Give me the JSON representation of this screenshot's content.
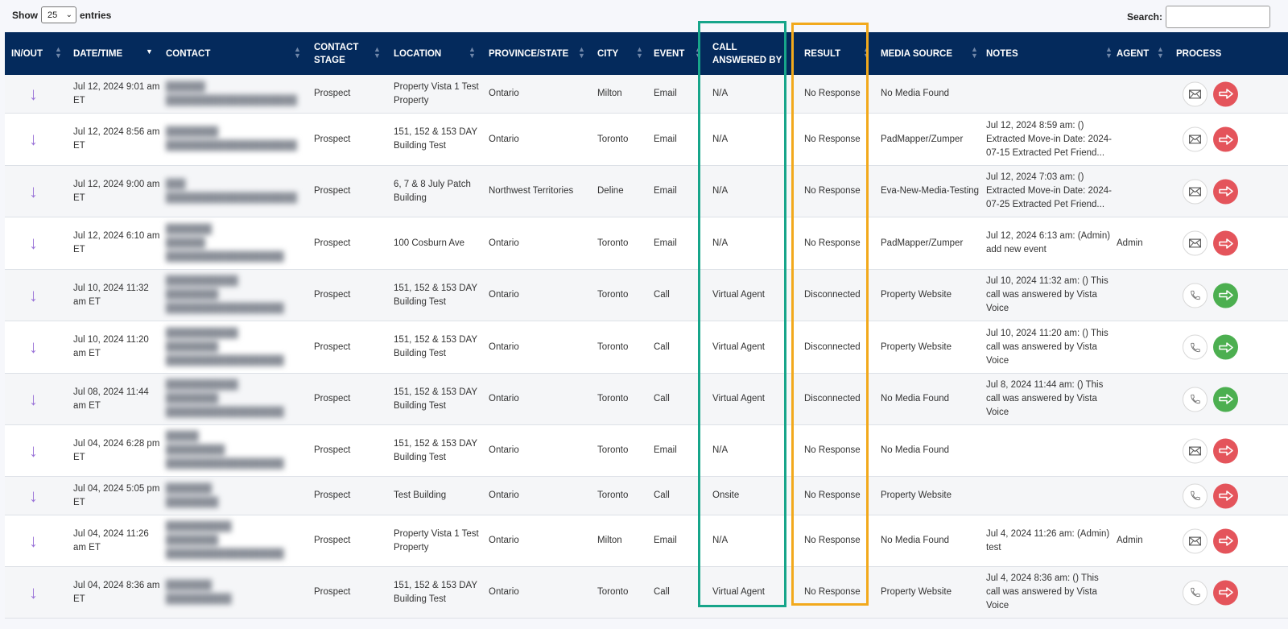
{
  "length_control": {
    "show_label": "Show",
    "selected": "25",
    "entries_label": "entries"
  },
  "search": {
    "label": "Search:",
    "value": ""
  },
  "columns": [
    {
      "key": "inout",
      "label": "IN/OUT"
    },
    {
      "key": "datetime",
      "label": "DATE/TIME"
    },
    {
      "key": "contact",
      "label": "CONTACT"
    },
    {
      "key": "stage",
      "label": "CONTACT STAGE"
    },
    {
      "key": "location",
      "label": "LOCATION"
    },
    {
      "key": "province",
      "label": "PROVINCE/STATE"
    },
    {
      "key": "city",
      "label": "CITY"
    },
    {
      "key": "event",
      "label": "EVENT"
    },
    {
      "key": "answered",
      "label": "CALL ANSWERED BY"
    },
    {
      "key": "result",
      "label": "RESULT"
    },
    {
      "key": "media",
      "label": "MEDIA SOURCE"
    },
    {
      "key": "notes",
      "label": "NOTES"
    },
    {
      "key": "agent",
      "label": "AGENT"
    },
    {
      "key": "process",
      "label": "PROCESS"
    }
  ],
  "direction_icon": "arrow-down-icon",
  "colors": {
    "header": "#042a5c",
    "teal_highlight": "#17a58a",
    "gold_highlight": "#f2a91c",
    "red": "#e4545b",
    "green": "#4caf50",
    "arrow": "#9a73d8"
  },
  "rows": [
    {
      "datetime": "Jul 12, 2024 9:01 am ET",
      "contact": [
        "██████",
        "████████████████████"
      ],
      "stage": "Prospect",
      "location": "Property Vista 1 Test Property",
      "province": "Ontario",
      "city": "Milton",
      "event": "Email",
      "answered": "N/A",
      "result": "No Response",
      "media": "No Media Found",
      "notes": "",
      "agent": "",
      "process_icon": "mail-icon",
      "action_color": "red"
    },
    {
      "datetime": "Jul 12, 2024 8:56 am ET",
      "contact": [
        "████████",
        "████████████████████"
      ],
      "stage": "Prospect",
      "location": "151, 152 & 153 DAY Building Test",
      "province": "Ontario",
      "city": "Toronto",
      "event": "Email",
      "answered": "N/A",
      "result": "No Response",
      "media": "PadMapper/Zumper",
      "notes": "Jul 12, 2024 8:59 am: () Extracted Move-in Date: 2024-07-15 Extracted Pet Friend...",
      "agent": "",
      "process_icon": "mail-icon",
      "action_color": "red"
    },
    {
      "datetime": "Jul 12, 2024 9:00 am ET",
      "contact": [
        "███",
        "████████████████████"
      ],
      "stage": "Prospect",
      "location": "6, 7 & 8 July Patch Building",
      "province": "Northwest Territories",
      "city": "Deline",
      "event": "Email",
      "answered": "N/A",
      "result": "No Response",
      "media": "Eva-New-Media-Testing",
      "notes": "Jul 12, 2024 7:03 am: () Extracted Move-in Date: 2024-07-25 Extracted Pet Friend...",
      "agent": "",
      "process_icon": "mail-icon",
      "action_color": "red"
    },
    {
      "datetime": "Jul 12, 2024 6:10 am ET",
      "contact": [
        "███████",
        "██████",
        "██████████████████"
      ],
      "stage": "Prospect",
      "location": "100 Cosburn Ave",
      "province": "Ontario",
      "city": "Toronto",
      "event": "Email",
      "answered": "N/A",
      "result": "No Response",
      "media": "PadMapper/Zumper",
      "notes": "Jul 12, 2024 6:13 am: (Admin) add new event",
      "agent": "Admin",
      "process_icon": "mail-icon",
      "action_color": "red"
    },
    {
      "datetime": "Jul 10, 2024 11:32 am ET",
      "contact": [
        "███████████",
        "████████",
        "██████████████████"
      ],
      "stage": "Prospect",
      "location": "151, 152 & 153 DAY Building Test",
      "province": "Ontario",
      "city": "Toronto",
      "event": "Call",
      "answered": "Virtual Agent",
      "result": "Disconnected",
      "media": "Property Website",
      "notes": "Jul 10, 2024 11:32 am: () This call was answered by Vista Voice",
      "agent": "",
      "process_icon": "phone-icon",
      "action_color": "green"
    },
    {
      "datetime": "Jul 10, 2024 11:20 am ET",
      "contact": [
        "███████████",
        "████████",
        "██████████████████"
      ],
      "stage": "Prospect",
      "location": "151, 152 & 153 DAY Building Test",
      "province": "Ontario",
      "city": "Toronto",
      "event": "Call",
      "answered": "Virtual Agent",
      "result": "Disconnected",
      "media": "Property Website",
      "notes": "Jul 10, 2024 11:20 am: () This call was answered by Vista Voice",
      "agent": "",
      "process_icon": "phone-icon",
      "action_color": "green"
    },
    {
      "datetime": "Jul 08, 2024 11:44 am ET",
      "contact": [
        "███████████",
        "████████",
        "██████████████████"
      ],
      "stage": "Prospect",
      "location": "151, 152 & 153 DAY Building Test",
      "province": "Ontario",
      "city": "Toronto",
      "event": "Call",
      "answered": "Virtual Agent",
      "result": "Disconnected",
      "media": "No Media Found",
      "notes": "Jul 8, 2024 11:44 am: () This call was answered by Vista Voice",
      "agent": "",
      "process_icon": "phone-icon",
      "action_color": "green"
    },
    {
      "datetime": "Jul 04, 2024 6:28 pm ET",
      "contact": [
        "█████",
        "█████████",
        "██████████████████"
      ],
      "stage": "Prospect",
      "location": "151, 152 & 153 DAY Building Test",
      "province": "Ontario",
      "city": "Toronto",
      "event": "Email",
      "answered": "N/A",
      "result": "No Response",
      "media": "No Media Found",
      "notes": "",
      "agent": "",
      "process_icon": "mail-icon",
      "action_color": "red"
    },
    {
      "datetime": "Jul 04, 2024 5:05 pm ET",
      "contact": [
        "███████",
        "████████"
      ],
      "stage": "Prospect",
      "location": "Test Building",
      "province": "Ontario",
      "city": "Toronto",
      "event": "Call",
      "answered": "Onsite",
      "result": "No Response",
      "media": "Property Website",
      "notes": "",
      "agent": "",
      "process_icon": "phone-icon",
      "action_color": "red"
    },
    {
      "datetime": "Jul 04, 2024 11:26 am ET",
      "contact": [
        "██████████",
        "████████",
        "██████████████████"
      ],
      "stage": "Prospect",
      "location": "Property Vista 1 Test Property",
      "province": "Ontario",
      "city": "Milton",
      "event": "Email",
      "answered": "N/A",
      "result": "No Response",
      "media": "No Media Found",
      "notes": "Jul 4, 2024 11:26 am: (Admin) test",
      "agent": "Admin",
      "process_icon": "mail-icon",
      "action_color": "red"
    },
    {
      "datetime": "Jul 04, 2024 8:36 am ET",
      "contact": [
        "███████",
        "██████████"
      ],
      "stage": "Prospect",
      "location": "151, 152 & 153 DAY Building Test",
      "province": "Ontario",
      "city": "Toronto",
      "event": "Call",
      "answered": "Virtual Agent",
      "result": "No Response",
      "media": "Property Website",
      "notes": "Jul 4, 2024 8:36 am: () This call was answered by Vista Voice",
      "agent": "",
      "process_icon": "phone-icon",
      "action_color": "red"
    }
  ]
}
